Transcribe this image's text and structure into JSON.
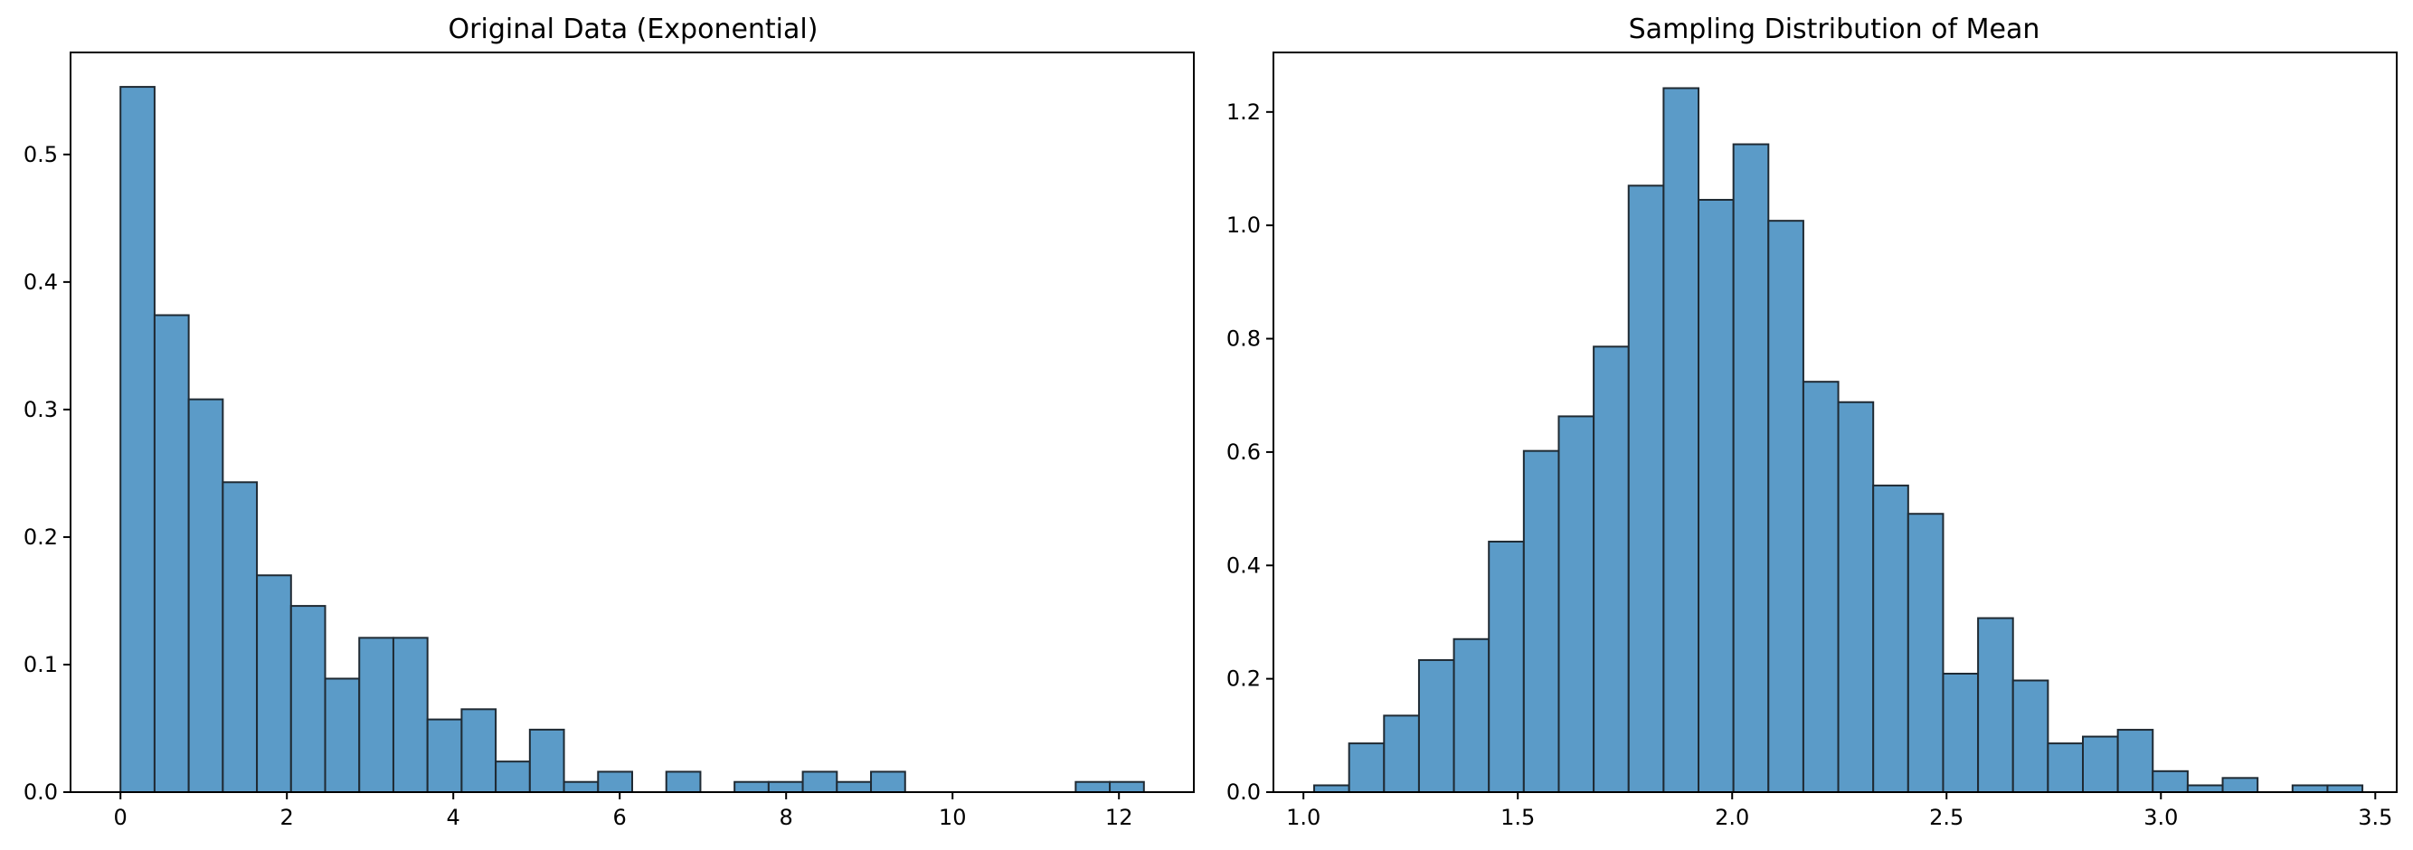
{
  "chart_data": [
    {
      "type": "bar",
      "title": "Original Data (Exponential)",
      "xlabel": "",
      "ylabel": "",
      "xlim": [
        -0.6,
        12.9
      ],
      "ylim": [
        0,
        0.58
      ],
      "xticks": [
        0,
        2,
        4,
        6,
        8,
        10,
        12
      ],
      "yticks": [
        0.0,
        0.1,
        0.2,
        0.3,
        0.4,
        0.5
      ],
      "grid": false,
      "color": "#5b9bc8",
      "bin_start": 0.0,
      "bin_width": 0.41,
      "values": [
        0.553,
        0.374,
        0.308,
        0.243,
        0.17,
        0.146,
        0.089,
        0.121,
        0.121,
        0.057,
        0.065,
        0.024,
        0.049,
        0.008,
        0.016,
        0,
        0.016,
        0,
        0.008,
        0.008,
        0.016,
        0.008,
        0.016,
        0,
        0,
        0,
        0,
        0,
        0.008,
        0.008
      ]
    },
    {
      "type": "bar",
      "title": "Sampling Distribution of Mean",
      "xlabel": "",
      "ylabel": "",
      "xlim": [
        0.93,
        3.55
      ],
      "ylim": [
        0,
        1.305
      ],
      "xticks": [
        1.0,
        1.5,
        2.0,
        2.5,
        3.0,
        3.5
      ],
      "yticks": [
        0.0,
        0.2,
        0.4,
        0.6,
        0.8,
        1.0,
        1.2
      ],
      "grid": false,
      "color": "#5b9bc8",
      "bin_start": 1.025,
      "bin_width": 0.0815,
      "values": [
        0.012,
        0.086,
        0.135,
        0.233,
        0.27,
        0.442,
        0.602,
        0.663,
        0.786,
        1.07,
        1.242,
        1.045,
        1.143,
        1.008,
        0.724,
        0.688,
        0.541,
        0.491,
        0.209,
        0.307,
        0.197,
        0.086,
        0.098,
        0.11,
        0.037,
        0.012,
        0.025,
        0,
        0.012,
        0.012
      ]
    }
  ]
}
